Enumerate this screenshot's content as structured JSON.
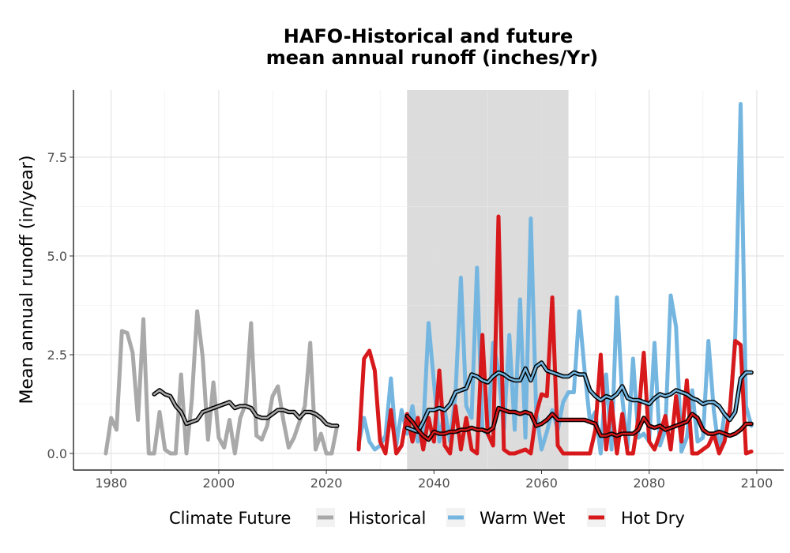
{
  "chart_data": {
    "type": "line",
    "title_line1": "HAFO-Historical and future",
    "title_line2": "mean annual runoff (inches/Yr)",
    "xlabel": "",
    "ylabel": "Mean annual runoff (in/year)",
    "xlim": [
      1973,
      2105
    ],
    "ylim": [
      -0.42,
      9.2
    ],
    "x_ticks": [
      1980,
      2000,
      2020,
      2040,
      2060,
      2080,
      2100
    ],
    "x_tick_labels": [
      "1980",
      "2000",
      "2020",
      "2040",
      "2060",
      "2080",
      "2100"
    ],
    "y_ticks": [
      0,
      2.5,
      5,
      7.5
    ],
    "y_tick_labels": [
      "0.0",
      "2.5",
      "5.0",
      "7.5"
    ],
    "grid": true,
    "highlight_band": {
      "x_start": 2035,
      "x_end": 2065,
      "color": "#dcdcdc"
    },
    "legend": {
      "title": "Climate Future",
      "position": "bottom",
      "entries": [
        "Historical",
        "Warm Wet",
        "Hot Dry"
      ]
    },
    "series": [
      {
        "name": "Historical",
        "color": "#a9a9a9",
        "x": [
          1979,
          1980,
          1981,
          1982,
          1983,
          1984,
          1985,
          1986,
          1987,
          1988,
          1989,
          1990,
          1991,
          1992,
          1993,
          1994,
          1995,
          1996,
          1997,
          1998,
          1999,
          2000,
          2001,
          2002,
          2003,
          2004,
          2005,
          2006,
          2007,
          2008,
          2009,
          2010,
          2011,
          2012,
          2013,
          2014,
          2015,
          2016,
          2017,
          2018,
          2019,
          2020,
          2021,
          2022
        ],
        "values": [
          0.0,
          0.9,
          0.6,
          3.1,
          3.05,
          2.55,
          0.85,
          3.4,
          0.0,
          0.0,
          1.05,
          0.1,
          0.0,
          0.0,
          2.0,
          0.0,
          1.35,
          3.6,
          2.45,
          0.35,
          1.8,
          0.4,
          0.15,
          0.85,
          0.0,
          0.9,
          1.25,
          3.3,
          0.45,
          0.35,
          0.7,
          1.45,
          1.7,
          0.85,
          0.15,
          0.4,
          0.8,
          1.2,
          2.8,
          0.1,
          0.5,
          0.0,
          0.0,
          0.7
        ]
      },
      {
        "name": "Warm Wet",
        "color": "#74b6e0",
        "x": [
          2026,
          2027,
          2028,
          2029,
          2030,
          2031,
          2032,
          2033,
          2034,
          2035,
          2036,
          2037,
          2038,
          2039,
          2040,
          2041,
          2042,
          2043,
          2044,
          2045,
          2046,
          2047,
          2048,
          2049,
          2050,
          2051,
          2052,
          2053,
          2054,
          2055,
          2056,
          2057,
          2058,
          2059,
          2060,
          2061,
          2062,
          2063,
          2064,
          2065,
          2066,
          2067,
          2068,
          2069,
          2070,
          2071,
          2072,
          2073,
          2074,
          2075,
          2076,
          2077,
          2078,
          2079,
          2080,
          2081,
          2082,
          2083,
          2084,
          2085,
          2086,
          2087,
          2088,
          2089,
          2090,
          2091,
          2092,
          2093,
          2094,
          2095,
          2096,
          2097,
          2098,
          2099
        ],
        "values": [
          0.25,
          0.9,
          0.3,
          0.1,
          0.2,
          0.45,
          1.9,
          0.2,
          1.1,
          0.5,
          1.2,
          0.3,
          0.6,
          3.3,
          1.8,
          0.3,
          1.1,
          0.3,
          1.5,
          4.45,
          1.2,
          0.9,
          4.7,
          0.6,
          0.5,
          2.8,
          2.1,
          0.6,
          3.0,
          0.6,
          3.9,
          0.4,
          5.95,
          1.05,
          0.1,
          0.55,
          1.1,
          0.6,
          1.3,
          1.55,
          1.55,
          3.6,
          2.1,
          0.8,
          1.05,
          0.0,
          2.0,
          0.1,
          3.95,
          1.4,
          0.15,
          2.4,
          0.4,
          0.5,
          0.3,
          2.8,
          0.2,
          0.6,
          4.0,
          3.2,
          0.05,
          0.4,
          1.6,
          0.3,
          0.4,
          2.85,
          1.1,
          0.05,
          1.0,
          0.9,
          3.0,
          8.85,
          1.2,
          0.7
        ]
      },
      {
        "name": "Hot Dry",
        "color": "#d7191c",
        "x": [
          2026,
          2027,
          2028,
          2029,
          2030,
          2031,
          2032,
          2033,
          2034,
          2035,
          2036,
          2037,
          2038,
          2039,
          2040,
          2041,
          2042,
          2043,
          2044,
          2045,
          2046,
          2047,
          2048,
          2049,
          2050,
          2051,
          2052,
          2053,
          2054,
          2055,
          2056,
          2057,
          2058,
          2059,
          2060,
          2061,
          2062,
          2063,
          2064,
          2065,
          2066,
          2067,
          2068,
          2069,
          2070,
          2071,
          2072,
          2073,
          2074,
          2075,
          2076,
          2077,
          2078,
          2079,
          2080,
          2081,
          2082,
          2083,
          2084,
          2085,
          2086,
          2087,
          2088,
          2089,
          2090,
          2091,
          2092,
          2093,
          2094,
          2095,
          2096,
          2097,
          2098,
          2099
        ],
        "values": [
          0.1,
          2.4,
          2.6,
          2.1,
          0.3,
          0.0,
          1.1,
          0.0,
          0.2,
          1.0,
          0.3,
          0.9,
          0.1,
          0.9,
          0.3,
          2.1,
          0.2,
          0.0,
          1.2,
          0.1,
          0.9,
          0.1,
          0.0,
          3.0,
          0.5,
          0.2,
          6.0,
          0.1,
          0.0,
          0.0,
          0.05,
          0.1,
          0.0,
          1.0,
          1.5,
          1.45,
          3.95,
          0.2,
          0.0,
          0.0,
          0.0,
          0.0,
          0.0,
          0.0,
          0.6,
          2.5,
          0.1,
          1.3,
          0.0,
          1.0,
          0.0,
          0.0,
          0.9,
          2.55,
          0.3,
          0.1,
          0.5,
          0.95,
          0.1,
          1.45,
          0.3,
          1.85,
          0.0,
          0.0,
          0.1,
          0.2,
          0.5,
          0.0,
          0.3,
          1.1,
          2.85,
          2.75,
          0.0,
          0.05
        ]
      },
      {
        "name": "",
        "color": "#a9a9a9",
        "smoothed": true,
        "x": [
          1988,
          1989,
          1990,
          1991,
          1992,
          1993,
          1994,
          1995,
          1996,
          1997,
          1998,
          1999,
          2000,
          2001,
          2002,
          2003,
          2004,
          2005,
          2006,
          2007,
          2008,
          2009,
          2010,
          2011,
          2012,
          2013,
          2014,
          2015,
          2016,
          2017,
          2018,
          2019,
          2020,
          2021,
          2022
        ],
        "values": [
          1.5,
          1.6,
          1.5,
          1.45,
          1.2,
          1.05,
          0.75,
          0.8,
          0.85,
          1.05,
          1.1,
          1.15,
          1.2,
          1.25,
          1.3,
          1.15,
          1.2,
          1.2,
          1.15,
          0.95,
          0.9,
          0.9,
          1.0,
          1.1,
          1.1,
          1.05,
          1.05,
          0.9,
          1.05,
          1.05,
          1.0,
          0.9,
          0.75,
          0.7,
          0.7
        ]
      },
      {
        "name": "",
        "color": "#74b6e0",
        "smoothed": true,
        "x": [
          2035,
          2036,
          2037,
          2038,
          2039,
          2040,
          2041,
          2042,
          2043,
          2044,
          2045,
          2046,
          2047,
          2048,
          2049,
          2050,
          2051,
          2052,
          2053,
          2054,
          2055,
          2056,
          2057,
          2058,
          2059,
          2060,
          2061,
          2062,
          2063,
          2064,
          2065,
          2066,
          2067,
          2068,
          2069,
          2070,
          2071,
          2072,
          2073,
          2074,
          2075,
          2076,
          2077,
          2078,
          2079,
          2080,
          2081,
          2082,
          2083,
          2084,
          2085,
          2086,
          2087,
          2088,
          2089,
          2090,
          2091,
          2092,
          2093,
          2094,
          2095,
          2096,
          2097,
          2098,
          2099
        ],
        "values": [
          0.65,
          0.6,
          0.55,
          0.8,
          1.1,
          1.1,
          1.15,
          1.1,
          1.25,
          1.55,
          1.6,
          1.65,
          2.0,
          1.95,
          1.85,
          1.8,
          1.95,
          2.05,
          2.0,
          1.9,
          1.85,
          1.85,
          2.15,
          1.85,
          2.2,
          2.3,
          2.1,
          2.05,
          2.0,
          1.95,
          1.95,
          2.05,
          2.0,
          2.0,
          1.6,
          1.45,
          1.35,
          1.45,
          1.4,
          1.5,
          1.7,
          1.4,
          1.35,
          1.35,
          1.3,
          1.25,
          1.4,
          1.5,
          1.45,
          1.5,
          1.6,
          1.55,
          1.5,
          1.4,
          1.35,
          1.25,
          1.3,
          1.3,
          1.2,
          1.0,
          0.85,
          1.05,
          1.9,
          2.05,
          2.05
        ]
      },
      {
        "name": "",
        "color": "#d7191c",
        "smoothed": true,
        "x": [
          2035,
          2036,
          2037,
          2038,
          2039,
          2040,
          2041,
          2042,
          2043,
          2044,
          2045,
          2046,
          2047,
          2048,
          2049,
          2050,
          2051,
          2052,
          2053,
          2054,
          2055,
          2056,
          2057,
          2058,
          2059,
          2060,
          2061,
          2062,
          2063,
          2064,
          2065,
          2066,
          2067,
          2068,
          2069,
          2070,
          2071,
          2072,
          2073,
          2074,
          2075,
          2076,
          2077,
          2078,
          2079,
          2080,
          2081,
          2082,
          2083,
          2084,
          2085,
          2086,
          2087,
          2088,
          2089,
          2090,
          2091,
          2092,
          2093,
          2094,
          2095,
          2096,
          2097,
          2098,
          2099
        ],
        "values": [
          0.95,
          0.8,
          0.6,
          0.45,
          0.35,
          0.55,
          0.5,
          0.5,
          0.55,
          0.55,
          0.6,
          0.6,
          0.65,
          0.6,
          0.6,
          0.55,
          0.65,
          1.15,
          1.1,
          1.05,
          1.05,
          1.0,
          1.05,
          1.0,
          0.7,
          0.75,
          0.85,
          1.0,
          0.85,
          0.85,
          0.85,
          0.85,
          0.85,
          0.85,
          0.8,
          0.75,
          0.45,
          0.45,
          0.5,
          0.45,
          0.5,
          0.5,
          0.5,
          0.6,
          0.9,
          0.7,
          0.65,
          0.7,
          0.6,
          0.65,
          0.7,
          0.75,
          0.8,
          1.0,
          0.9,
          0.6,
          0.5,
          0.5,
          0.55,
          0.5,
          0.45,
          0.5,
          0.6,
          0.75,
          0.75
        ]
      }
    ]
  }
}
